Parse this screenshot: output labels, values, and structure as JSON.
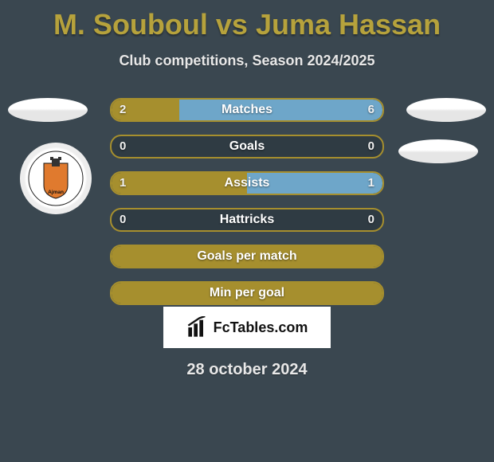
{
  "title": "M. Souboul vs Juma Hassan",
  "subtitle": "Club competitions, Season 2024/2025",
  "date": "28 october 2024",
  "brand": "FcTables.com",
  "colors": {
    "title": "#b6a23c",
    "background": "#3a4750",
    "bar_track": "#2f3b43",
    "player1_bar": "#a68f2e",
    "player2_bar": "#6ea6c9",
    "border_default": "#a68f2e",
    "border_player2": "#6ea6c9",
    "brand_bg": "#ffffff",
    "brand_text": "#111111"
  },
  "stats": [
    {
      "label": "Matches",
      "p1": "2",
      "p2": "6",
      "p1_pct": 25,
      "p2_pct": 75,
      "show_values": true
    },
    {
      "label": "Goals",
      "p1": "0",
      "p2": "0",
      "p1_pct": 0,
      "p2_pct": 0,
      "show_values": true
    },
    {
      "label": "Assists",
      "p1": "1",
      "p2": "1",
      "p1_pct": 50,
      "p2_pct": 50,
      "show_values": true
    },
    {
      "label": "Hattricks",
      "p1": "0",
      "p2": "0",
      "p1_pct": 0,
      "p2_pct": 0,
      "show_values": true
    },
    {
      "label": "Goals per match",
      "p1": "",
      "p2": "",
      "p1_pct": 100,
      "p2_pct": 0,
      "show_values": false
    },
    {
      "label": "Min per goal",
      "p1": "",
      "p2": "",
      "p1_pct": 100,
      "p2_pct": 0,
      "show_values": false
    }
  ]
}
